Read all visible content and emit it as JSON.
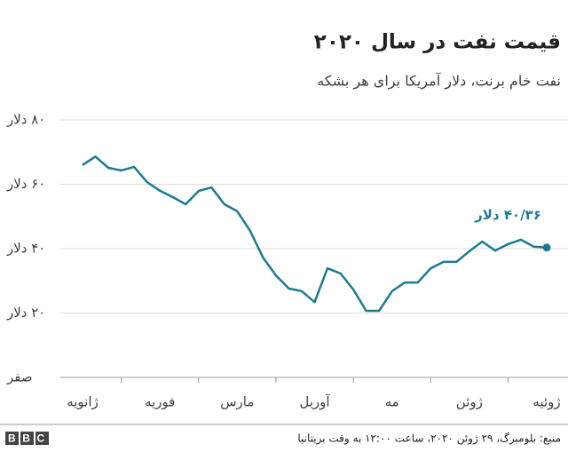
{
  "chart_data": {
    "type": "line",
    "title": "قیمت نفت در سال ۲۰۲۰",
    "subtitle": "نفت خام برنت، دلار آمریکا برای هر بشکه",
    "annotation": "۴۰/۳۶ دلار",
    "source": "منبع: بلومبرگ، ۲۹ ژوئن ۲۰۲۰، ساعت ۱۲:۰۰ به وقت بریتانیا",
    "logo": "BBC",
    "categories": [
      "ژانویه",
      null,
      null,
      null,
      null,
      null,
      "فوریه",
      null,
      null,
      null,
      null,
      null,
      "مارس",
      null,
      null,
      null,
      null,
      null,
      "آوریل",
      null,
      null,
      null,
      null,
      null,
      "مه",
      null,
      null,
      null,
      null,
      null,
      "ژوئن",
      null,
      null,
      null,
      null,
      null,
      "ژوئیه"
    ],
    "values": [
      66,
      68.6,
      65.1,
      64.3,
      65.4,
      60.7,
      58,
      56,
      53.8,
      57.9,
      59,
      53.8,
      51.6,
      45.5,
      37.2,
      31.7,
      27.6,
      26.8,
      23.4,
      33.9,
      32.3,
      27.3,
      20.7,
      20.7,
      26.8,
      29.5,
      29.5,
      33.9,
      35.9,
      35.9,
      39.2,
      42.2,
      39.4,
      41.4,
      42.8,
      40.6,
      40.36
    ],
    "color": "#1b7b94",
    "ylim": [
      0,
      80
    ],
    "yticks": [
      {
        "value": 0,
        "label": "صفر"
      },
      {
        "value": 20,
        "label": "۲۰ دلار"
      },
      {
        "value": 40,
        "label": "۴۰ دلار"
      },
      {
        "value": 60,
        "label": "۶۰ دلار"
      },
      {
        "value": 80,
        "label": "۸۰ دلار"
      }
    ],
    "grid": true
  }
}
